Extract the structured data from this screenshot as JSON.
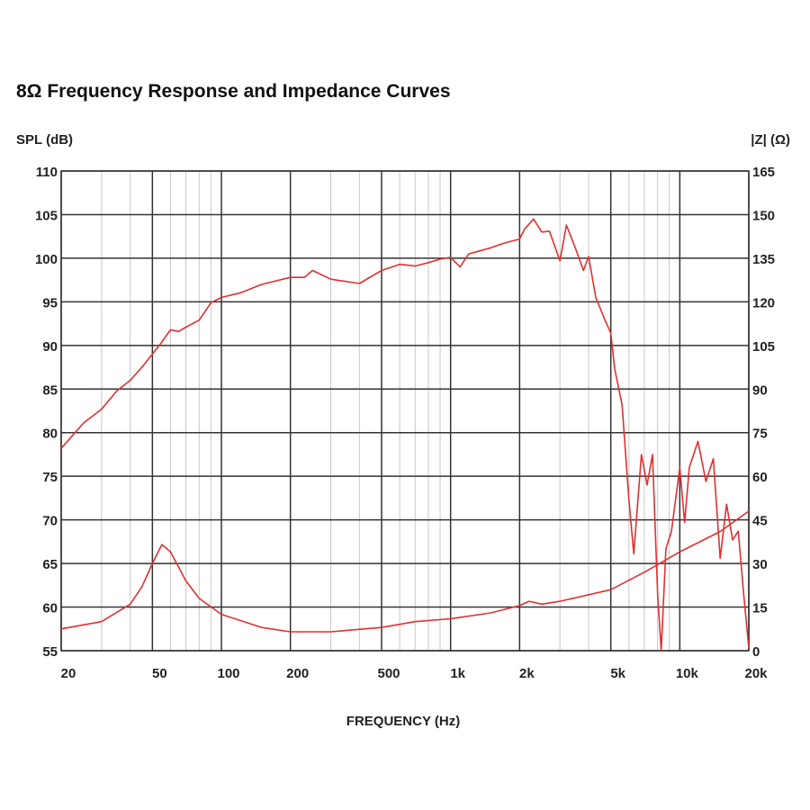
{
  "chart_data": {
    "type": "line",
    "title": "8Ω Frequency Response and Impedance Curves",
    "xlabel": "FREQUENCY (Hz)",
    "ylabel_left": "SPL (dB)",
    "ylabel_right": "|Z| (Ω)",
    "x_scale": "log",
    "xlim": [
      20,
      20000
    ],
    "ylim_left": [
      55,
      110
    ],
    "ylim_right": [
      0,
      165
    ],
    "grid": true,
    "x_ticks": [
      {
        "value": 20,
        "label": "20"
      },
      {
        "value": 50,
        "label": "50"
      },
      {
        "value": 100,
        "label": "100"
      },
      {
        "value": 200,
        "label": "200"
      },
      {
        "value": 500,
        "label": "500"
      },
      {
        "value": 1000,
        "label": "1k"
      },
      {
        "value": 2000,
        "label": "2k"
      },
      {
        "value": 5000,
        "label": "5k"
      },
      {
        "value": 10000,
        "label": "10k"
      },
      {
        "value": 20000,
        "label": "20k"
      }
    ],
    "y_ticks_left": [
      "110",
      "105",
      "100",
      "95",
      "90",
      "85",
      "80",
      "75",
      "70",
      "65",
      "60",
      "55"
    ],
    "y_ticks_right": [
      "165",
      "150",
      "135",
      "120",
      "105",
      "90",
      "75",
      "60",
      "45",
      "30",
      "15",
      "0"
    ],
    "line_color": "#e03030",
    "series": [
      {
        "axis": "left",
        "x": [
          20,
          25,
          30,
          35,
          40,
          45,
          50,
          55,
          60,
          65,
          70,
          80,
          90,
          100,
          120,
          150,
          200,
          230,
          250,
          300,
          400,
          500,
          600,
          700,
          800,
          900,
          1000,
          1100,
          1200,
          1500,
          1700,
          2000,
          2100,
          2300,
          2500,
          2700,
          3000,
          3200,
          3500,
          3800,
          4000,
          4300,
          4700,
          5000,
          5200,
          5600,
          6000,
          6300,
          6800,
          7200,
          7600,
          8000,
          8300,
          8700,
          9200,
          10000,
          10500,
          11000,
          12000,
          13000,
          14000,
          15000,
          16000,
          17000,
          18000,
          19000,
          20000
        ],
        "y": [
          78.2,
          81.1,
          82.7,
          84.8,
          86,
          87.5,
          89,
          90.4,
          91.8,
          91.6,
          92.1,
          92.9,
          94.9,
          95.5,
          96,
          97,
          97.8,
          97.8,
          98.6,
          97.6,
          97.1,
          98.6,
          99.3,
          99.1,
          99.5,
          99.9,
          100.1,
          99,
          100.5,
          101.2,
          101.7,
          102.2,
          103.3,
          104.5,
          103,
          103.1,
          99.7,
          103.8,
          101.2,
          98.6,
          100.2,
          95.5,
          93,
          91.4,
          87.3,
          83.2,
          72.3,
          66.1,
          77.5,
          74,
          77.5,
          61.5,
          55,
          66.7,
          68.7,
          76,
          69.7,
          76,
          79,
          74.4,
          77,
          65.6,
          71.8,
          67.7,
          68.7,
          61.5,
          55.3
        ]
      },
      {
        "axis": "right",
        "x": [
          20,
          30,
          40,
          45,
          50,
          55,
          60,
          70,
          80,
          100,
          150,
          200,
          300,
          500,
          700,
          1000,
          1500,
          2000,
          2200,
          2500,
          3000,
          5000,
          7000,
          10000,
          15000,
          20000
        ],
        "y": [
          7.5,
          10,
          16,
          22,
          30,
          36.5,
          34,
          24,
          18,
          12.5,
          8,
          6.5,
          6.5,
          8,
          10,
          11,
          13,
          15.5,
          17,
          16,
          17,
          21,
          27,
          34,
          41,
          48
        ]
      }
    ]
  }
}
